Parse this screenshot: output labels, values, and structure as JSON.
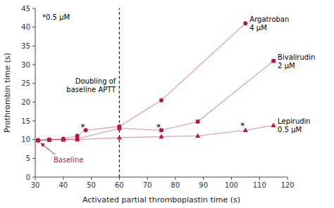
{
  "chart_data": {
    "type": "line",
    "xlabel": "Activated partial thromboplastin time (s)",
    "ylabel": "Prothrombin time (s)",
    "xlim": [
      30,
      120
    ],
    "ylim": [
      0,
      45
    ],
    "xticks": [
      30,
      40,
      50,
      60,
      70,
      80,
      90,
      100,
      110,
      120
    ],
    "yticks": [
      0,
      5,
      10,
      15,
      20,
      25,
      30,
      35,
      40,
      45
    ],
    "grid": false,
    "series": [
      {
        "name": "Argatroban",
        "concentration": "4 μM",
        "color": "#b5174b",
        "marker": "circle",
        "x": [
          31,
          35,
          40,
          45,
          48,
          60,
          75,
          105
        ],
        "values": [
          9.8,
          10.0,
          10.2,
          11.0,
          12.5,
          13.5,
          20.5,
          41.0
        ]
      },
      {
        "name": "Bivalirudin",
        "concentration": "2 μM",
        "color": "#b5174b",
        "marker": "square",
        "x": [
          31,
          35,
          40,
          45,
          60,
          75,
          88,
          115
        ],
        "values": [
          9.8,
          10.0,
          10.0,
          10.2,
          13.0,
          12.5,
          14.8,
          31.0
        ]
      },
      {
        "name": "Lepirudin",
        "concentration": "0.5 μM",
        "color": "#b5174b",
        "marker": "triangle",
        "x": [
          31,
          35,
          40,
          45,
          60,
          75,
          88,
          105,
          115
        ],
        "values": [
          9.8,
          9.9,
          10.0,
          10.0,
          10.5,
          10.8,
          11.0,
          12.5,
          13.8
        ]
      }
    ],
    "reference_line": {
      "x": 60,
      "label": "Doubling of\nbaseline APTT"
    },
    "note": "*0.5 μM",
    "baseline_label": "Baseline",
    "significance_marks": [
      {
        "x": 47,
        "y": 13.5,
        "text": "*"
      },
      {
        "x": 74,
        "y": 13.5,
        "text": "*"
      },
      {
        "x": 104,
        "y": 13.8,
        "text": "*"
      }
    ]
  }
}
